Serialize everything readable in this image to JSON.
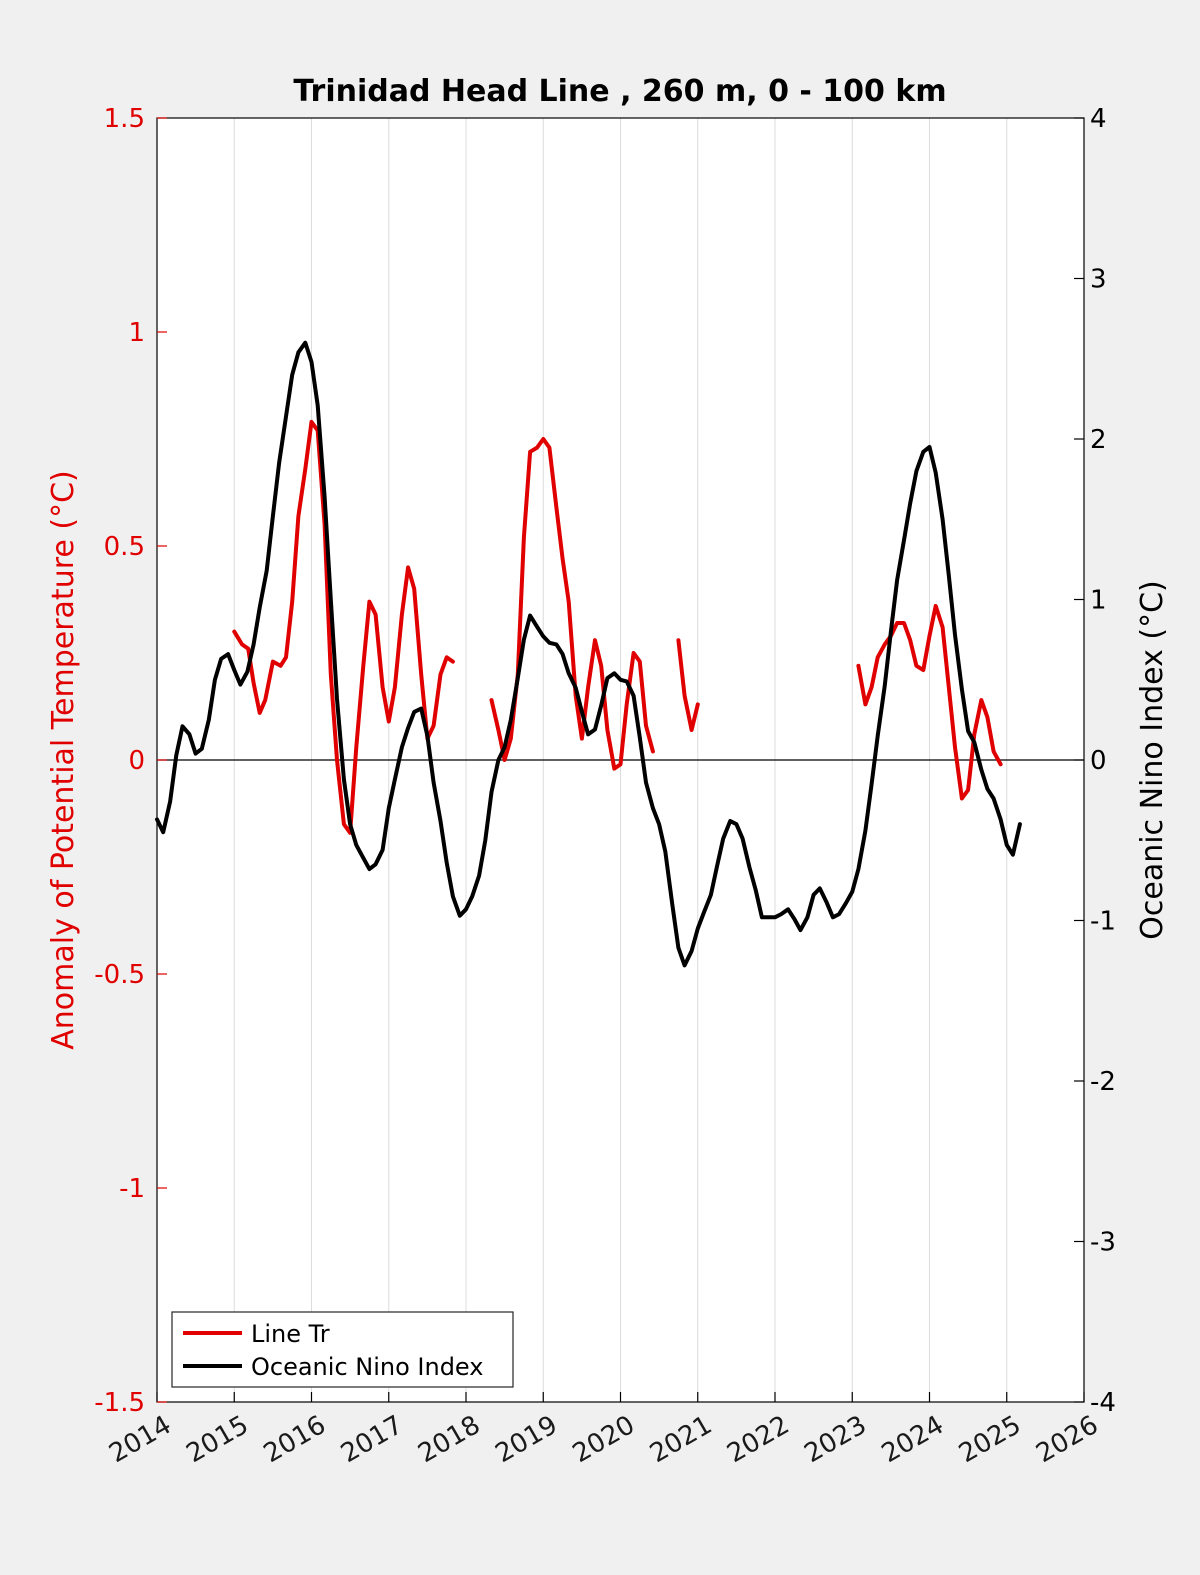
{
  "chart_data": {
    "type": "line",
    "title": "Trinidad Head Line , 260 m, 0 - 100 km",
    "xlabel": "",
    "xlim": [
      2014,
      2026
    ],
    "x_ticks": [
      "2014",
      "2015",
      "2016",
      "2017",
      "2018",
      "2019",
      "2020",
      "2021",
      "2022",
      "2023",
      "2024",
      "2025",
      "2026"
    ],
    "ylabel_left": "Anomaly of Potential Temperature (°C)",
    "ylim_left": [
      -1.5,
      1.5
    ],
    "y_ticks_left": [
      "-1.5",
      "-1",
      "-0.5",
      "0",
      "0.5",
      "1",
      "1.5"
    ],
    "ylabel_right": "Oceanic Nino Index (°C)",
    "ylim_right": [
      -4,
      4
    ],
    "y_ticks_right": [
      "-4",
      "-3",
      "-2",
      "-1",
      "0",
      "1",
      "2",
      "3",
      "4"
    ],
    "grid": "vertical",
    "legend_position": "bottom-left",
    "colors": {
      "line_tr": "#e00000",
      "oni": "#000000",
      "left_axis": "#e00000"
    },
    "series": [
      {
        "name": "Line Tr",
        "axis": "left",
        "segments": [
          [
            [
              2015.0,
              0.3
            ],
            [
              2015.1,
              0.27
            ],
            [
              2015.18,
              0.26
            ],
            [
              2015.25,
              0.18
            ],
            [
              2015.33,
              0.11
            ],
            [
              2015.4,
              0.14
            ],
            [
              2015.5,
              0.23
            ],
            [
              2015.6,
              0.22
            ],
            [
              2015.67,
              0.24
            ],
            [
              2015.75,
              0.37
            ],
            [
              2015.83,
              0.57
            ],
            [
              2015.92,
              0.68
            ],
            [
              2016.0,
              0.79
            ],
            [
              2016.08,
              0.77
            ],
            [
              2016.17,
              0.55
            ],
            [
              2016.25,
              0.2
            ],
            [
              2016.33,
              0.0
            ],
            [
              2016.42,
              -0.15
            ],
            [
              2016.5,
              -0.17
            ],
            [
              2016.58,
              0.03
            ],
            [
              2016.67,
              0.22
            ],
            [
              2016.75,
              0.37
            ],
            [
              2016.83,
              0.34
            ],
            [
              2016.92,
              0.17
            ],
            [
              2017.0,
              0.09
            ],
            [
              2017.08,
              0.17
            ],
            [
              2017.17,
              0.34
            ],
            [
              2017.25,
              0.45
            ],
            [
              2017.33,
              0.4
            ],
            [
              2017.42,
              0.2
            ],
            [
              2017.5,
              0.05
            ],
            [
              2017.58,
              0.08
            ],
            [
              2017.67,
              0.2
            ],
            [
              2017.75,
              0.24
            ],
            [
              2017.83,
              0.23
            ]
          ],
          [
            [
              2018.33,
              0.14
            ],
            [
              2018.42,
              0.07
            ],
            [
              2018.5,
              0.0
            ],
            [
              2018.58,
              0.05
            ],
            [
              2018.67,
              0.2
            ],
            [
              2018.75,
              0.52
            ],
            [
              2018.83,
              0.72
            ],
            [
              2018.92,
              0.73
            ],
            [
              2019.0,
              0.75
            ],
            [
              2019.08,
              0.73
            ],
            [
              2019.17,
              0.59
            ],
            [
              2019.25,
              0.47
            ],
            [
              2019.33,
              0.37
            ],
            [
              2019.42,
              0.15
            ],
            [
              2019.5,
              0.05
            ],
            [
              2019.58,
              0.17
            ],
            [
              2019.67,
              0.28
            ],
            [
              2019.75,
              0.22
            ],
            [
              2019.83,
              0.07
            ],
            [
              2019.92,
              -0.02
            ],
            [
              2020.0,
              -0.01
            ],
            [
              2020.08,
              0.13
            ],
            [
              2020.17,
              0.25
            ],
            [
              2020.25,
              0.23
            ],
            [
              2020.33,
              0.08
            ],
            [
              2020.42,
              0.02
            ]
          ],
          [
            [
              2020.75,
              0.28
            ],
            [
              2020.83,
              0.15
            ],
            [
              2020.92,
              0.07
            ],
            [
              2021.0,
              0.13
            ]
          ],
          [
            [
              2023.08,
              0.22
            ],
            [
              2023.17,
              0.13
            ],
            [
              2023.25,
              0.17
            ],
            [
              2023.33,
              0.24
            ],
            [
              2023.42,
              0.27
            ],
            [
              2023.5,
              0.29
            ],
            [
              2023.58,
              0.32
            ],
            [
              2023.67,
              0.32
            ],
            [
              2023.75,
              0.28
            ],
            [
              2023.83,
              0.22
            ],
            [
              2023.92,
              0.21
            ],
            [
              2024.0,
              0.29
            ],
            [
              2024.08,
              0.36
            ],
            [
              2024.17,
              0.31
            ],
            [
              2024.25,
              0.17
            ],
            [
              2024.33,
              0.03
            ],
            [
              2024.42,
              -0.09
            ],
            [
              2024.5,
              -0.07
            ],
            [
              2024.58,
              0.06
            ],
            [
              2024.67,
              0.14
            ],
            [
              2024.75,
              0.1
            ],
            [
              2024.83,
              0.02
            ],
            [
              2024.92,
              -0.01
            ]
          ]
        ]
      },
      {
        "name": "Oceanic Nino Index",
        "axis": "right",
        "segments": [
          [
            [
              2014.0,
              -0.37
            ],
            [
              2014.08,
              -0.45
            ],
            [
              2014.17,
              -0.26
            ],
            [
              2014.25,
              0.03
            ],
            [
              2014.33,
              0.21
            ],
            [
              2014.42,
              0.16
            ],
            [
              2014.5,
              0.04
            ],
            [
              2014.58,
              0.07
            ],
            [
              2014.67,
              0.25
            ],
            [
              2014.75,
              0.5
            ],
            [
              2014.83,
              0.63
            ],
            [
              2014.92,
              0.66
            ],
            [
              2015.0,
              0.56
            ],
            [
              2015.08,
              0.47
            ],
            [
              2015.17,
              0.55
            ],
            [
              2015.25,
              0.72
            ],
            [
              2015.33,
              0.95
            ],
            [
              2015.42,
              1.18
            ],
            [
              2015.5,
              1.52
            ],
            [
              2015.58,
              1.85
            ],
            [
              2015.67,
              2.14
            ],
            [
              2015.75,
              2.4
            ],
            [
              2015.83,
              2.54
            ],
            [
              2015.92,
              2.6
            ],
            [
              2016.0,
              2.48
            ],
            [
              2016.08,
              2.21
            ],
            [
              2016.17,
              1.64
            ],
            [
              2016.25,
              1.0
            ],
            [
              2016.33,
              0.38
            ],
            [
              2016.42,
              -0.12
            ],
            [
              2016.5,
              -0.4
            ],
            [
              2016.58,
              -0.53
            ],
            [
              2016.67,
              -0.61
            ],
            [
              2016.75,
              -0.68
            ],
            [
              2016.83,
              -0.65
            ],
            [
              2016.92,
              -0.56
            ],
            [
              2017.0,
              -0.3
            ],
            [
              2017.08,
              -0.12
            ],
            [
              2017.17,
              0.08
            ],
            [
              2017.25,
              0.2
            ],
            [
              2017.33,
              0.3
            ],
            [
              2017.42,
              0.32
            ],
            [
              2017.5,
              0.15
            ],
            [
              2017.58,
              -0.14
            ],
            [
              2017.67,
              -0.38
            ],
            [
              2017.75,
              -0.64
            ],
            [
              2017.83,
              -0.85
            ],
            [
              2017.92,
              -0.97
            ],
            [
              2018.0,
              -0.93
            ],
            [
              2018.08,
              -0.85
            ],
            [
              2018.17,
              -0.72
            ],
            [
              2018.25,
              -0.5
            ],
            [
              2018.33,
              -0.2
            ],
            [
              2018.42,
              0.0
            ],
            [
              2018.5,
              0.08
            ],
            [
              2018.58,
              0.25
            ],
            [
              2018.67,
              0.51
            ],
            [
              2018.75,
              0.75
            ],
            [
              2018.83,
              0.9
            ],
            [
              2018.92,
              0.83
            ],
            [
              2019.0,
              0.77
            ],
            [
              2019.08,
              0.73
            ],
            [
              2019.17,
              0.72
            ],
            [
              2019.25,
              0.66
            ],
            [
              2019.33,
              0.54
            ],
            [
              2019.42,
              0.45
            ],
            [
              2019.5,
              0.3
            ],
            [
              2019.58,
              0.16
            ],
            [
              2019.67,
              0.19
            ],
            [
              2019.75,
              0.34
            ],
            [
              2019.83,
              0.51
            ],
            [
              2019.92,
              0.54
            ],
            [
              2020.0,
              0.5
            ],
            [
              2020.08,
              0.49
            ],
            [
              2020.17,
              0.4
            ],
            [
              2020.25,
              0.14
            ],
            [
              2020.33,
              -0.14
            ],
            [
              2020.42,
              -0.3
            ],
            [
              2020.5,
              -0.4
            ],
            [
              2020.58,
              -0.57
            ],
            [
              2020.67,
              -0.9
            ],
            [
              2020.75,
              -1.17
            ],
            [
              2020.83,
              -1.28
            ],
            [
              2020.92,
              -1.19
            ],
            [
              2021.0,
              -1.05
            ],
            [
              2021.08,
              -0.95
            ],
            [
              2021.17,
              -0.84
            ],
            [
              2021.25,
              -0.66
            ],
            [
              2021.33,
              -0.49
            ],
            [
              2021.42,
              -0.38
            ],
            [
              2021.5,
              -0.4
            ],
            [
              2021.58,
              -0.49
            ],
            [
              2021.67,
              -0.67
            ],
            [
              2021.75,
              -0.81
            ],
            [
              2021.83,
              -0.98
            ],
            [
              2021.92,
              -0.98
            ],
            [
              2022.0,
              -0.98
            ],
            [
              2022.08,
              -0.96
            ],
            [
              2022.17,
              -0.93
            ],
            [
              2022.25,
              -0.99
            ],
            [
              2022.33,
              -1.06
            ],
            [
              2022.42,
              -0.98
            ],
            [
              2022.5,
              -0.84
            ],
            [
              2022.58,
              -0.8
            ],
            [
              2022.67,
              -0.89
            ],
            [
              2022.75,
              -0.98
            ],
            [
              2022.83,
              -0.96
            ],
            [
              2022.92,
              -0.89
            ],
            [
              2023.0,
              -0.82
            ],
            [
              2023.08,
              -0.68
            ],
            [
              2023.17,
              -0.44
            ],
            [
              2023.25,
              -0.15
            ],
            [
              2023.33,
              0.15
            ],
            [
              2023.42,
              0.46
            ],
            [
              2023.5,
              0.8
            ],
            [
              2023.58,
              1.12
            ],
            [
              2023.67,
              1.37
            ],
            [
              2023.75,
              1.6
            ],
            [
              2023.83,
              1.8
            ],
            [
              2023.92,
              1.92
            ],
            [
              2024.0,
              1.95
            ],
            [
              2024.08,
              1.79
            ],
            [
              2024.17,
              1.5
            ],
            [
              2024.25,
              1.15
            ],
            [
              2024.33,
              0.78
            ],
            [
              2024.42,
              0.44
            ],
            [
              2024.5,
              0.18
            ],
            [
              2024.58,
              0.11
            ],
            [
              2024.67,
              -0.06
            ],
            [
              2024.75,
              -0.18
            ],
            [
              2024.83,
              -0.24
            ],
            [
              2024.92,
              -0.37
            ],
            [
              2025.0,
              -0.53
            ],
            [
              2025.08,
              -0.59
            ],
            [
              2025.17,
              -0.4
            ]
          ]
        ]
      }
    ]
  }
}
